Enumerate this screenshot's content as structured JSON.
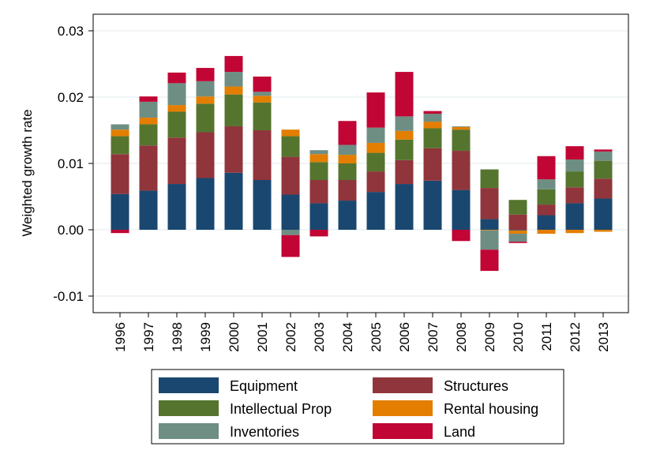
{
  "chart_data": {
    "type": "bar",
    "stacked": true,
    "ylabel": "Weighted growth rate",
    "xlabel": "",
    "ylim": [
      -0.0125,
      0.0325
    ],
    "yticks": [
      -0.01,
      0.0,
      0.01,
      0.02,
      0.03
    ],
    "ytick_labels": [
      "-0.01",
      "0.00",
      "0.01",
      "0.02",
      "0.03"
    ],
    "grid": true,
    "legend_position": "bottom",
    "categories": [
      "1996",
      "1997",
      "1998",
      "1999",
      "2000",
      "2001",
      "2002",
      "2003",
      "2004",
      "2005",
      "2006",
      "2007",
      "2008",
      "2009",
      "2010",
      "2011",
      "2012",
      "2013"
    ],
    "series": [
      {
        "name": "Equipment",
        "color": "#1a476f",
        "values": [
          0.0054,
          0.0059,
          0.0069,
          0.0078,
          0.0086,
          0.0075,
          0.0053,
          0.004,
          0.0044,
          0.0057,
          0.0069,
          0.0074,
          0.006,
          0.0016,
          -0.0001,
          0.0022,
          0.004,
          0.0047
        ]
      },
      {
        "name": "Structures",
        "color": "#90353b",
        "values": [
          0.006,
          0.0068,
          0.007,
          0.0069,
          0.007,
          0.0075,
          0.0057,
          0.0035,
          0.0031,
          0.0031,
          0.0036,
          0.0049,
          0.0059,
          0.0047,
          0.0023,
          0.0016,
          0.0024,
          0.003
        ]
      },
      {
        "name": "Intellectual Prop",
        "color": "#55752f",
        "values": [
          0.0027,
          0.0032,
          0.0039,
          0.0043,
          0.0048,
          0.0042,
          0.0031,
          0.0027,
          0.0025,
          0.0028,
          0.0031,
          0.003,
          0.0032,
          0.0028,
          0.0022,
          0.0023,
          0.0024,
          0.0027
        ]
      },
      {
        "name": "Rental housing",
        "color": "#e37e00",
        "values": [
          0.001,
          0.001,
          0.001,
          0.0011,
          0.0012,
          0.001,
          0.001,
          0.0012,
          0.0013,
          0.0015,
          0.0013,
          0.001,
          0.0004,
          -0.0001,
          -0.0005,
          -0.0006,
          -0.0005,
          -0.0003
        ]
      },
      {
        "name": "Inventories",
        "color": "#6e8e84",
        "values": [
          0.0008,
          0.0024,
          0.0033,
          0.0023,
          0.0022,
          0.0006,
          -0.0008,
          0.0006,
          0.0015,
          0.0023,
          0.0022,
          0.0012,
          0.0001,
          -0.0029,
          -0.0012,
          0.0015,
          0.0018,
          0.0014
        ]
      },
      {
        "name": "Land",
        "color": "#c10534",
        "values": [
          -0.0005,
          0.0008,
          0.0016,
          0.002,
          0.0024,
          0.0023,
          -0.0033,
          -0.001,
          0.0036,
          0.0053,
          0.0067,
          0.0004,
          -0.0017,
          -0.0032,
          -0.0002,
          0.0035,
          0.002,
          0.0003
        ]
      }
    ]
  }
}
